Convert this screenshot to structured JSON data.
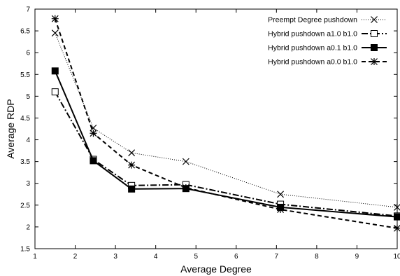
{
  "chart_data": {
    "type": "line",
    "title": "",
    "xlabel": "Average Degree",
    "ylabel": "Average RDP",
    "xlim": [
      1,
      10
    ],
    "ylim": [
      1.5,
      7
    ],
    "x_ticks": [
      1,
      2,
      3,
      4,
      5,
      6,
      7,
      8,
      9,
      10
    ],
    "y_ticks": [
      1.5,
      2,
      2.5,
      3,
      3.5,
      4,
      4.5,
      5,
      5.5,
      6,
      6.5,
      7
    ],
    "grid": false,
    "legend_position": "top-right",
    "series": [
      {
        "name": "Preempt Degree pushdown",
        "line": "dotted",
        "marker": "x",
        "x": [
          1.5,
          2.45,
          3.4,
          4.75,
          7.1,
          10
        ],
        "y": [
          6.45,
          4.27,
          3.7,
          3.5,
          2.75,
          2.45
        ]
      },
      {
        "name": "Hybrid pushdown  a1.0 b1.0",
        "line": "dashdot",
        "marker": "open-square",
        "x": [
          1.5,
          2.45,
          3.4,
          4.75,
          7.1,
          10
        ],
        "y": [
          5.1,
          3.55,
          2.95,
          2.97,
          2.52,
          2.25
        ]
      },
      {
        "name": "Hybrid pushdown  a0.1 b1.0",
        "line": "solid",
        "marker": "filled-square",
        "x": [
          1.5,
          2.45,
          3.4,
          4.75,
          7.1,
          10
        ],
        "y": [
          5.58,
          3.52,
          2.87,
          2.88,
          2.45,
          2.23
        ]
      },
      {
        "name": "Hybrid pushdown  a0.0 b1.0",
        "line": "dashed",
        "marker": "asterisk",
        "x": [
          1.5,
          2.45,
          3.4,
          4.75,
          7.1,
          10
        ],
        "y": [
          6.78,
          4.15,
          3.42,
          2.9,
          2.4,
          1.97
        ]
      }
    ]
  }
}
